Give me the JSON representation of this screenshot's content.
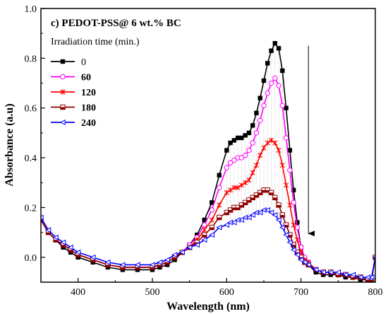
{
  "chart_data": {
    "type": "line",
    "title": "c) PEDOT-PSS@ 6 wt.% BC",
    "xlabel": "Wavelength (nm)",
    "ylabel": "Absorbance (a.u)",
    "xlim": [
      350,
      800
    ],
    "ylim": [
      -0.1,
      1.0
    ],
    "xticks": [
      400,
      500,
      600,
      700,
      800
    ],
    "yticks": [
      0.0,
      0.2,
      0.4,
      0.6,
      0.8,
      1.0
    ],
    "xtick_labels": [
      "400",
      "500",
      "600",
      "700",
      "800"
    ],
    "ytick_labels": [
      "0.0",
      "0.2",
      "0.4",
      "0.6",
      "0.8",
      "1.0"
    ],
    "legend_title": "Irradiation time (min.)",
    "legend_position": "top-left",
    "arrow": {
      "x": 710,
      "y_start": 0.85,
      "y_end": 0.07
    },
    "series": [
      {
        "name": "0",
        "color": "#000000",
        "marker": "square-filled",
        "x": [
          350,
          360,
          370,
          380,
          390,
          400,
          420,
          440,
          460,
          480,
          500,
          510,
          520,
          530,
          540,
          550,
          560,
          570,
          580,
          590,
          600,
          605,
          610,
          615,
          620,
          625,
          630,
          635,
          640,
          645,
          650,
          655,
          660,
          665,
          670,
          675,
          680,
          685,
          690,
          695,
          700,
          705,
          710,
          720,
          730,
          740,
          750,
          760,
          770,
          780,
          790,
          795,
          800
        ],
        "y": [
          0.15,
          0.1,
          0.07,
          0.04,
          0.02,
          0.0,
          -0.02,
          -0.04,
          -0.05,
          -0.05,
          -0.05,
          -0.04,
          -0.03,
          -0.01,
          0.02,
          0.05,
          0.09,
          0.15,
          0.22,
          0.33,
          0.43,
          0.46,
          0.47,
          0.48,
          0.48,
          0.49,
          0.5,
          0.53,
          0.58,
          0.64,
          0.71,
          0.78,
          0.83,
          0.86,
          0.84,
          0.75,
          0.6,
          0.43,
          0.27,
          0.14,
          0.04,
          -0.01,
          -0.03,
          -0.06,
          -0.07,
          -0.07,
          -0.07,
          -0.08,
          -0.08,
          -0.09,
          -0.09,
          -0.09,
          0.0
        ]
      },
      {
        "name": "60",
        "color": "#ff00ff",
        "marker": "circle-open",
        "x": [
          350,
          360,
          370,
          380,
          390,
          400,
          420,
          440,
          460,
          480,
          500,
          510,
          520,
          530,
          540,
          550,
          560,
          570,
          580,
          590,
          600,
          605,
          610,
          615,
          620,
          625,
          630,
          635,
          640,
          645,
          650,
          655,
          660,
          665,
          670,
          675,
          680,
          685,
          690,
          695,
          700,
          705,
          710,
          720,
          730,
          740,
          750,
          760,
          770,
          780,
          790,
          795,
          800
        ],
        "y": [
          0.15,
          0.1,
          0.07,
          0.05,
          0.03,
          0.01,
          -0.01,
          -0.03,
          -0.04,
          -0.04,
          -0.04,
          -0.03,
          -0.02,
          0.0,
          0.02,
          0.05,
          0.08,
          0.13,
          0.19,
          0.28,
          0.36,
          0.38,
          0.39,
          0.4,
          0.4,
          0.41,
          0.43,
          0.46,
          0.5,
          0.55,
          0.61,
          0.66,
          0.7,
          0.72,
          0.69,
          0.61,
          0.48,
          0.35,
          0.22,
          0.12,
          0.04,
          0.0,
          -0.02,
          -0.05,
          -0.06,
          -0.06,
          -0.07,
          -0.07,
          -0.08,
          -0.08,
          -0.09,
          -0.09,
          0.0
        ]
      },
      {
        "name": "120",
        "color": "#ff0000",
        "marker": "star",
        "x": [
          350,
          360,
          370,
          380,
          390,
          400,
          420,
          440,
          460,
          480,
          500,
          510,
          520,
          530,
          540,
          550,
          560,
          570,
          580,
          590,
          600,
          605,
          610,
          615,
          620,
          625,
          630,
          635,
          640,
          645,
          650,
          655,
          660,
          665,
          670,
          675,
          680,
          685,
          690,
          695,
          700,
          705,
          710,
          720,
          730,
          740,
          750,
          760,
          770,
          780,
          790,
          795,
          800
        ],
        "y": [
          0.15,
          0.1,
          0.07,
          0.05,
          0.03,
          0.01,
          -0.01,
          -0.03,
          -0.04,
          -0.04,
          -0.04,
          -0.03,
          -0.02,
          0.0,
          0.02,
          0.04,
          0.07,
          0.11,
          0.15,
          0.21,
          0.26,
          0.27,
          0.28,
          0.28,
          0.29,
          0.3,
          0.31,
          0.34,
          0.37,
          0.41,
          0.44,
          0.46,
          0.47,
          0.46,
          0.43,
          0.37,
          0.29,
          0.21,
          0.13,
          0.07,
          0.02,
          -0.01,
          -0.02,
          -0.05,
          -0.06,
          -0.06,
          -0.07,
          -0.07,
          -0.08,
          -0.08,
          -0.09,
          -0.09,
          0.0
        ]
      },
      {
        "name": "180",
        "color": "#8b0000",
        "marker": "square-half",
        "x": [
          350,
          360,
          370,
          380,
          390,
          400,
          420,
          440,
          460,
          480,
          500,
          510,
          520,
          530,
          540,
          550,
          560,
          570,
          580,
          590,
          600,
          605,
          610,
          615,
          620,
          625,
          630,
          635,
          640,
          645,
          650,
          655,
          660,
          665,
          670,
          675,
          680,
          685,
          690,
          695,
          700,
          705,
          710,
          720,
          730,
          740,
          750,
          760,
          770,
          780,
          790,
          795,
          800
        ],
        "y": [
          0.15,
          0.1,
          0.07,
          0.05,
          0.03,
          0.01,
          -0.01,
          -0.03,
          -0.04,
          -0.04,
          -0.04,
          -0.03,
          -0.02,
          0.0,
          0.02,
          0.04,
          0.06,
          0.09,
          0.12,
          0.16,
          0.18,
          0.19,
          0.2,
          0.2,
          0.21,
          0.22,
          0.23,
          0.24,
          0.25,
          0.26,
          0.27,
          0.27,
          0.26,
          0.24,
          0.21,
          0.17,
          0.13,
          0.09,
          0.05,
          0.02,
          0.0,
          -0.02,
          -0.03,
          -0.05,
          -0.06,
          -0.06,
          -0.07,
          -0.07,
          -0.08,
          -0.08,
          -0.09,
          -0.09,
          0.0
        ]
      },
      {
        "name": "240",
        "color": "#0000ff",
        "marker": "triangle-left",
        "x": [
          350,
          360,
          370,
          380,
          390,
          400,
          420,
          440,
          460,
          480,
          500,
          510,
          520,
          530,
          540,
          550,
          560,
          570,
          580,
          590,
          600,
          605,
          610,
          615,
          620,
          625,
          630,
          635,
          640,
          645,
          650,
          655,
          660,
          665,
          670,
          675,
          680,
          685,
          690,
          695,
          700,
          705,
          710,
          720,
          730,
          740,
          750,
          760,
          770,
          780,
          790,
          795,
          800
        ],
        "y": [
          0.16,
          0.11,
          0.08,
          0.06,
          0.04,
          0.02,
          0.0,
          -0.02,
          -0.03,
          -0.03,
          -0.03,
          -0.02,
          -0.01,
          0.01,
          0.02,
          0.04,
          0.05,
          0.07,
          0.09,
          0.12,
          0.13,
          0.14,
          0.14,
          0.15,
          0.15,
          0.16,
          0.16,
          0.17,
          0.18,
          0.18,
          0.19,
          0.19,
          0.18,
          0.17,
          0.15,
          0.12,
          0.09,
          0.06,
          0.03,
          0.01,
          -0.01,
          -0.02,
          -0.03,
          -0.05,
          -0.06,
          -0.06,
          -0.06,
          -0.07,
          -0.07,
          -0.08,
          -0.08,
          -0.08,
          0.0
        ]
      }
    ]
  }
}
